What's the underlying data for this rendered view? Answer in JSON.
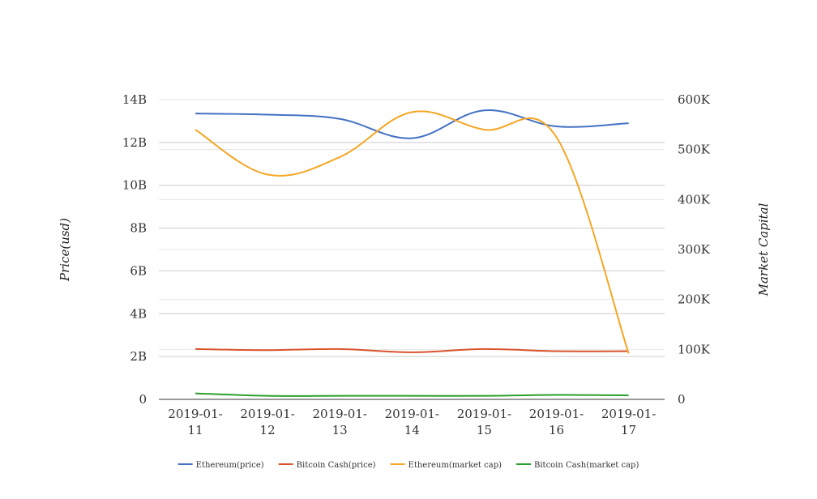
{
  "chart_data": {
    "type": "line",
    "x": [
      "2019-01-11",
      "2019-01-12",
      "2019-01-13",
      "2019-01-14",
      "2019-01-15",
      "2019-01-16",
      "2019-01-17"
    ],
    "x_tick_labels": [
      [
        "2019-01-",
        "11"
      ],
      [
        "2019-01-",
        "12"
      ],
      [
        "2019-01-",
        "13"
      ],
      [
        "2019-01-",
        "14"
      ],
      [
        "2019-01-",
        "15"
      ],
      [
        "2019-01-",
        "16"
      ],
      [
        "2019-01-",
        "17"
      ]
    ],
    "y_left": {
      "label": "Price(usd)",
      "ticks": [
        0,
        2,
        4,
        6,
        8,
        10,
        12,
        14
      ],
      "tick_labels": [
        "0",
        "2B",
        "4B",
        "6B",
        "8B",
        "10B",
        "12B",
        "14B"
      ],
      "range": [
        0,
        14
      ]
    },
    "y_right": {
      "label": "Market Capital",
      "ticks": [
        0,
        100,
        200,
        300,
        400,
        500,
        600
      ],
      "tick_labels": [
        "0",
        "100K",
        "200K",
        "300K",
        "400K",
        "500K",
        "600K"
      ],
      "range": [
        0,
        600
      ]
    },
    "grid": true,
    "legend_position": "bottom",
    "series": [
      {
        "name": "Ethereum(price)",
        "axis": "left",
        "color": "#4472c4",
        "values": [
          13.35,
          13.3,
          13.1,
          12.2,
          13.5,
          12.75,
          12.9
        ]
      },
      {
        "name": "Bitcoin Cash(price)",
        "axis": "left",
        "color": "#d9532c",
        "values": [
          2.35,
          2.3,
          2.35,
          2.2,
          2.35,
          2.25,
          2.25
        ]
      },
      {
        "name": "Ethereum(market cap)",
        "axis": "right",
        "color": "#f5a623",
        "values": [
          540,
          450,
          485,
          575,
          540,
          525,
          92
        ]
      },
      {
        "name": "Bitcoin Cash(market cap)",
        "axis": "right",
        "color": "#2ca02c",
        "values": [
          12,
          7,
          7,
          7,
          7,
          9,
          8
        ]
      }
    ]
  }
}
